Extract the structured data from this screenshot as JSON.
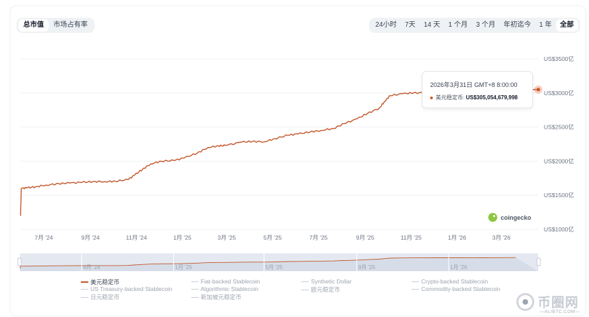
{
  "metric_toggle": [
    "总市值",
    "市场占有率"
  ],
  "metric_active": 0,
  "ranges": [
    "24小时",
    "7天",
    "14 天",
    "1 个月",
    "3 个月",
    "年初迄今",
    "1 年",
    "全部"
  ],
  "range_active": 7,
  "tooltip": {
    "date": "2026年3月31日 GMT+8 8:00:00",
    "series_label": "美元稳定币:",
    "value": "US$305,054,679,998"
  },
  "watermark": "coingecko",
  "colors": {
    "series": "#c2562a",
    "highlight": "#f3a48a"
  },
  "chart_data": {
    "type": "line",
    "title": "",
    "xlabel": "",
    "ylabel": "",
    "ylim": [
      1000,
      3500
    ],
    "y_unit": "亿 US$",
    "y_ticks": [
      1000,
      1500,
      2000,
      2500,
      3000,
      3500
    ],
    "y_tick_labels": [
      "US$1000亿",
      "US$1500亿",
      "US$2000亿",
      "US$2500亿",
      "US$3000亿",
      "US$3500亿"
    ],
    "x_range": [
      "2024-06-11",
      "2026-04-30"
    ],
    "x_ticks": [
      "2024-07-01",
      "2024-09-01",
      "2024-11-01",
      "2025-01-01",
      "2025-03-01",
      "2025-05-01",
      "2025-07-01",
      "2025-09-01",
      "2025-11-01",
      "2026-01-01",
      "2026-03-01"
    ],
    "x_tick_labels": [
      "7月 '24",
      "9月 '24",
      "11月 '24",
      "1月 '25",
      "3月 '25",
      "5月 '25",
      "7月 '25",
      "9月 '25",
      "11月 '25",
      "1月 '26",
      "3月 '26"
    ],
    "navigator_labels": [
      "9月 '24",
      "1月 '25",
      "5月 '25",
      "9月 '25",
      "1月 '26"
    ],
    "series": [
      {
        "name": "美元稳定币",
        "x": [
          "2024-06-11",
          "2024-06-12",
          "2024-06-20",
          "2024-07-01",
          "2024-07-15",
          "2024-08-01",
          "2024-08-15",
          "2024-09-01",
          "2024-09-15",
          "2024-10-01",
          "2024-10-15",
          "2024-11-01",
          "2024-11-10",
          "2024-11-20",
          "2024-12-01",
          "2024-12-15",
          "2025-01-01",
          "2025-01-15",
          "2025-02-01",
          "2025-02-15",
          "2025-03-01",
          "2025-03-10",
          "2025-04-01",
          "2025-04-15",
          "2025-05-01",
          "2025-05-15",
          "2025-06-01",
          "2025-06-15",
          "2025-07-01",
          "2025-07-15",
          "2025-08-01",
          "2025-08-15",
          "2025-09-01",
          "2025-09-15",
          "2025-10-01",
          "2025-10-08",
          "2025-10-15",
          "2025-11-01",
          "2025-11-15",
          "2025-12-01",
          "2025-12-15",
          "2026-01-01",
          "2026-01-15",
          "2026-02-01",
          "2026-02-15",
          "2026-03-01",
          "2026-03-15",
          "2026-03-31"
        ],
        "values": [
          1200,
          1600,
          1610,
          1625,
          1650,
          1670,
          1680,
          1690,
          1700,
          1700,
          1705,
          1730,
          1800,
          1880,
          1960,
          2000,
          2010,
          2050,
          2120,
          2200,
          2225,
          2230,
          2280,
          2290,
          2285,
          2330,
          2380,
          2400,
          2430,
          2450,
          2480,
          2550,
          2620,
          2700,
          2780,
          2880,
          2960,
          2990,
          3000,
          3005,
          3010,
          3012,
          3015,
          3020,
          3018,
          3022,
          3030,
          3050
        ]
      }
    ],
    "legend": {
      "active": "美元稳定币",
      "items": [
        "美元稳定币",
        "Fiat-backed Stablecoin",
        "Synthetic Dollar",
        "Crypto-backed Stablecoin",
        "US Treasury-backed Stablecoin",
        "Algorithmic Stablecoin",
        "欧元稳定币",
        "Commodity-backed Stablecoin",
        "日元稳定币",
        "新加坡元稳定币"
      ]
    }
  },
  "brand": {
    "name": "币圈网",
    "url": "—ALIBTC.COM—"
  }
}
